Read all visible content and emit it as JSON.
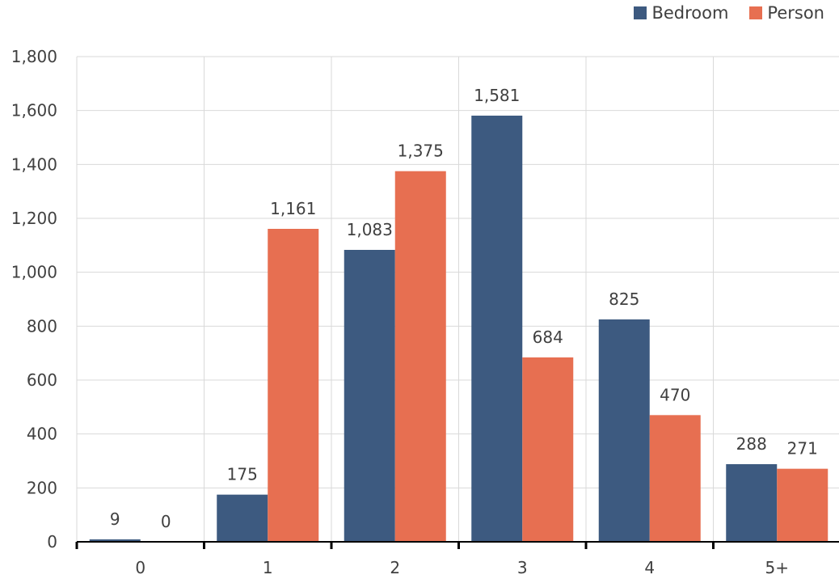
{
  "chart_data": {
    "type": "bar",
    "categories": [
      "0",
      "1",
      "2",
      "3",
      "4",
      "5+"
    ],
    "series": [
      {
        "name": "Bedroom",
        "color": "#3d5a80",
        "values": [
          9,
          175,
          1083,
          1581,
          825,
          288
        ]
      },
      {
        "name": "Person",
        "color": "#e76f51",
        "values": [
          0,
          1161,
          1375,
          684,
          470,
          271
        ]
      }
    ],
    "data_labels": {
      "Bedroom": [
        "9",
        "175",
        "1,083",
        "1,581",
        "825",
        "288"
      ],
      "Person": [
        "0",
        "1,161",
        "1,375",
        "684",
        "470",
        "271"
      ]
    },
    "ylim": [
      0,
      1800
    ],
    "yticks": [
      "0",
      "200",
      "400",
      "600",
      "800",
      "1,000",
      "1,200",
      "1,400",
      "1,600",
      "1,800"
    ],
    "grid": true,
    "legend_position": "top-right"
  }
}
